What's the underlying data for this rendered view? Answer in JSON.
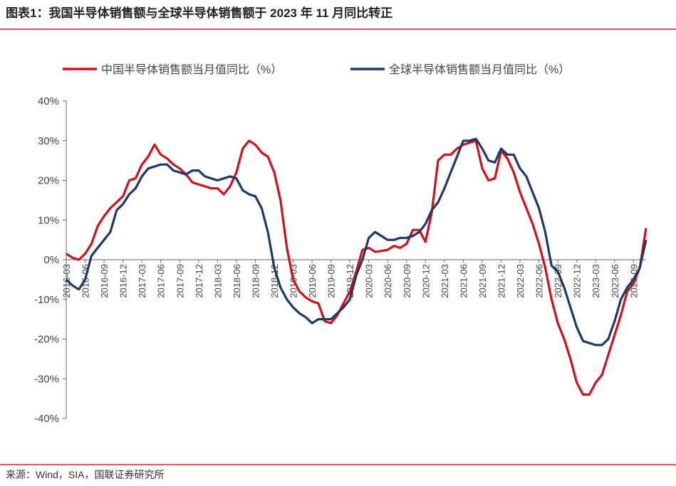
{
  "chart_data": {
    "type": "line",
    "title": "图表1：我国半导体销售额与全球半导体销售额于 2023 年 11 月同比转正",
    "source": "来源：Wind，SIA，国联证券研究所",
    "categories": [
      "2016-03",
      null,
      null,
      "2016-06",
      null,
      null,
      "2016-09",
      null,
      null,
      "2016-12",
      null,
      null,
      "2017-03",
      null,
      null,
      "2017-06",
      null,
      null,
      "2017-09",
      null,
      null,
      "2017-12",
      null,
      null,
      "2018-03",
      null,
      null,
      "2018-06",
      null,
      null,
      "2018-09",
      null,
      null,
      "2018-12",
      null,
      null,
      "2019-03",
      null,
      null,
      "2019-06",
      null,
      null,
      "2019-09",
      null,
      null,
      "2019-12",
      null,
      null,
      "2020-03",
      null,
      null,
      "2020-06",
      null,
      null,
      "2020-09",
      null,
      null,
      "2020-12",
      null,
      null,
      "2021-03",
      null,
      null,
      "2021-06",
      null,
      null,
      "2021-09",
      null,
      null,
      "2021-12",
      null,
      null,
      "2022-03",
      null,
      null,
      "2022-06",
      null,
      null,
      "2022-09",
      null,
      null,
      "2022-12",
      null,
      null,
      "2023-03",
      null,
      null,
      "2023-06",
      null,
      null,
      "2023-09",
      null,
      null
    ],
    "series": [
      {
        "name": "中国半导体销售额当月值同比（%）",
        "color": "#d0101b",
        "values": [
          1.5,
          0.5,
          0,
          1.5,
          4,
          8.5,
          11,
          13,
          14.5,
          16,
          20,
          20.5,
          24,
          26,
          29,
          26.5,
          25.5,
          24,
          23,
          21.5,
          19.5,
          19,
          18.5,
          18,
          18,
          16.5,
          18.5,
          22,
          28,
          30,
          29,
          27,
          26,
          22,
          15,
          3,
          -5,
          -8,
          -9.5,
          -10.5,
          -11,
          -15.5,
          -16,
          -14,
          -11,
          -8,
          -3,
          2.5,
          3,
          2,
          2.2,
          2.5,
          3.5,
          3,
          4,
          7.5,
          7.5,
          4.5,
          12,
          25,
          26.5,
          26.5,
          28,
          29,
          29.5,
          30,
          23,
          20,
          20.5,
          27.5,
          25.5,
          22,
          17,
          13,
          9,
          4,
          -2,
          -10,
          -16,
          -20,
          -25,
          -31,
          -34,
          -34,
          -31,
          -29,
          -24,
          -19,
          -14,
          -8,
          -6,
          -2,
          8
        ]
      },
      {
        "name": "全球半导体销售额当月值同比（%）",
        "color": "#1f3864",
        "values": [
          -5,
          -6.5,
          -7.5,
          -5,
          1,
          3,
          5,
          7,
          12.5,
          14,
          16.5,
          18,
          21,
          23,
          23.5,
          24,
          24,
          22.5,
          22,
          21.5,
          22.5,
          22.5,
          21,
          20.5,
          20,
          20.5,
          21,
          20.5,
          17.5,
          16.5,
          16,
          13,
          7,
          -2,
          -7,
          -10,
          -12,
          -13.5,
          -14.5,
          -16,
          -15,
          -15,
          -15,
          -13.5,
          -12,
          -10,
          -4,
          0,
          5.5,
          7,
          6,
          5,
          5,
          5.5,
          5.5,
          6,
          7,
          9,
          12.5,
          14.5,
          18,
          22,
          26,
          30,
          30,
          30.5,
          28,
          25,
          24.5,
          28,
          26.5,
          26.5,
          23,
          21,
          17,
          13,
          7,
          -1.5,
          -3,
          -7,
          -12,
          -17,
          -20.5,
          -21,
          -21.5,
          -21.5,
          -20,
          -15.5,
          -10,
          -7,
          -5,
          -2,
          5
        ]
      }
    ],
    "ylim": [
      -40,
      40
    ],
    "yticks": [
      {
        "value": -40,
        "label": "-40%"
      },
      {
        "value": -30,
        "label": "-30%"
      },
      {
        "value": -20,
        "label": "-20%"
      },
      {
        "value": -10,
        "label": "-10%"
      },
      {
        "value": 0,
        "label": "0%"
      },
      {
        "value": 10,
        "label": "10%"
      },
      {
        "value": 20,
        "label": "20%"
      },
      {
        "value": 30,
        "label": "30%"
      },
      {
        "value": 40,
        "label": "40%"
      }
    ],
    "legend": "top"
  }
}
